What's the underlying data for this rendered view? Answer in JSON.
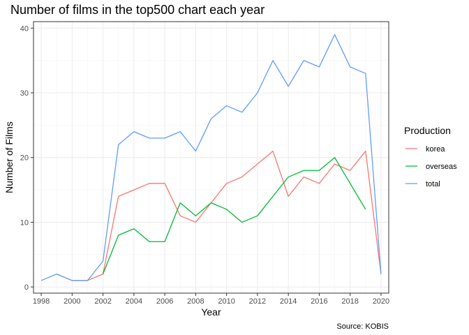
{
  "chart_data": {
    "type": "line",
    "title": "Number of films in the top500 chart each year",
    "xlabel": "Year",
    "ylabel": "Number of Films",
    "caption": "Source: KOBIS",
    "legend_title": "Production",
    "legend_position": "right",
    "grid": true,
    "xlim": [
      1997.5,
      2020.5
    ],
    "ylim": [
      -0.95,
      41
    ],
    "x_ticks": [
      1998,
      2000,
      2002,
      2004,
      2006,
      2008,
      2010,
      2012,
      2014,
      2016,
      2018,
      2020
    ],
    "y_ticks": [
      0,
      10,
      20,
      30,
      40
    ],
    "series": [
      {
        "name": "korea",
        "color": "#F8766D",
        "x": [
          1999,
          2000,
          2001,
          2002,
          2003,
          2004,
          2005,
          2006,
          2007,
          2008,
          2009,
          2010,
          2011,
          2012,
          2013,
          2014,
          2015,
          2016,
          2017,
          2018,
          2019,
          2020
        ],
        "y": [
          2,
          1,
          1,
          2,
          14,
          15,
          16,
          16,
          11,
          10,
          13,
          16,
          17,
          19,
          21,
          14,
          17,
          16,
          19,
          18,
          21,
          2
        ]
      },
      {
        "name": "overseas",
        "color": "#00BA38",
        "x": [
          2002,
          2003,
          2004,
          2005,
          2006,
          2007,
          2008,
          2009,
          2010,
          2011,
          2012,
          2013,
          2014,
          2015,
          2016,
          2017,
          2018,
          2019
        ],
        "y": [
          2,
          8,
          9,
          7,
          7,
          13,
          11,
          13,
          12,
          10,
          11,
          14,
          17,
          18,
          18,
          20,
          16,
          12
        ]
      },
      {
        "name": "total",
        "color": "#619CFF",
        "x": [
          1998,
          1999,
          2000,
          2001,
          2002,
          2003,
          2004,
          2005,
          2006,
          2007,
          2008,
          2009,
          2010,
          2011,
          2012,
          2013,
          2014,
          2015,
          2016,
          2017,
          2018,
          2019,
          2020
        ],
        "y": [
          1,
          2,
          1,
          1,
          4,
          22,
          24,
          23,
          23,
          24,
          21,
          26,
          28,
          27,
          30,
          35,
          31,
          35,
          34,
          39,
          34,
          33,
          2
        ]
      }
    ]
  }
}
